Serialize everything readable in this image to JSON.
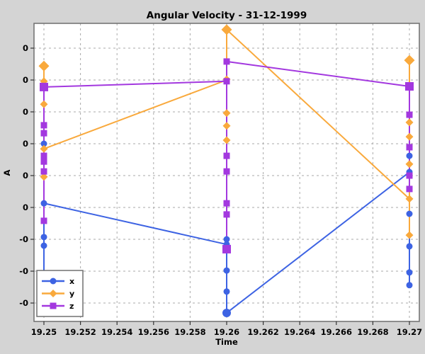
{
  "colors": {
    "figure_background": "#d4d4d4",
    "plot_background": "#ffffff",
    "grid": "#aaaaaa",
    "plot_border": "#6e6e6e",
    "legend_border": "#707070",
    "text": "#000000",
    "series_x": "#3d63e3",
    "series_y": "#f9a93c",
    "series_z": "#a338df"
  },
  "chart_data": {
    "type": "line",
    "title": "Angular Velocity - 31-12-1999",
    "xlabel": "Time",
    "ylabel": "A",
    "grid": true,
    "legend_position": "lower left",
    "x_range": [
      19.2495,
      19.2705
    ],
    "x_ticks": [
      {
        "v": 19.25,
        "label": "19.25"
      },
      {
        "v": 19.252,
        "label": "19.252"
      },
      {
        "v": 19.254,
        "label": "19.254"
      },
      {
        "v": 19.256,
        "label": "19.256"
      },
      {
        "v": 19.258,
        "label": "19.258"
      },
      {
        "v": 19.26,
        "label": "19.26"
      },
      {
        "v": 19.262,
        "label": "19.262"
      },
      {
        "v": 19.264,
        "label": "19.264"
      },
      {
        "v": 19.266,
        "label": "19.266"
      },
      {
        "v": 19.268,
        "label": "19.268"
      },
      {
        "v": 19.27,
        "label": "19.27"
      }
    ],
    "y_axis_note": "values are near zero; tick labels render as 0 / -0; y coordinates below are in gridline units relative to the last '0' tick",
    "y_ticks": [
      {
        "v": 5,
        "label": "0"
      },
      {
        "v": 4,
        "label": "0"
      },
      {
        "v": 3,
        "label": "0"
      },
      {
        "v": 2,
        "label": "0"
      },
      {
        "v": 1,
        "label": "0"
      },
      {
        "v": 0,
        "label": "0"
      },
      {
        "v": -1,
        "label": "-0"
      },
      {
        "v": -2,
        "label": "-0"
      },
      {
        "v": -3,
        "label": "-0"
      }
    ],
    "series": [
      {
        "name": "x",
        "marker": "circle",
        "color_key": "series_x",
        "clusters": [
          {
            "t": 19.25,
            "line": [
              2.0,
              -2.78
            ],
            "points": [
              2.0,
              1.44,
              0.13,
              -0.93,
              -1.2
            ],
            "big": []
          },
          {
            "t": 19.26,
            "line": [
              -1.0,
              -3.31
            ],
            "points": [
              -1.0,
              -1.16,
              -1.98,
              -2.64,
              -3.31
            ],
            "big": [
              -3.31
            ]
          },
          {
            "t": 19.27,
            "line": [
              1.62,
              -2.44
            ],
            "points": [
              1.62,
              1.11,
              -0.2,
              -1.22,
              -2.04,
              -2.44
            ],
            "big": []
          }
        ],
        "connectors": [
          {
            "t1": 19.25,
            "v1": 0.13,
            "t2": 19.26,
            "v2": -1.16
          },
          {
            "t1": 19.26,
            "v1": -3.31,
            "t2": 19.27,
            "v2": 1.11
          }
        ]
      },
      {
        "name": "y",
        "marker": "diamond",
        "color_key": "series_y",
        "clusters": [
          {
            "t": 19.25,
            "line": [
              4.44,
              0.96
            ],
            "points": [
              4.44,
              3.96,
              3.24,
              1.84,
              0.96
            ],
            "big": [
              4.44
            ]
          },
          {
            "t": 19.26,
            "line": [
              5.58,
              2.11
            ],
            "points": [
              5.58,
              4.02,
              2.96,
              2.56,
              2.11
            ],
            "big": [
              5.58
            ]
          },
          {
            "t": 19.27,
            "line": [
              4.62,
              -0.87
            ],
            "points": [
              4.62,
              2.67,
              2.22,
              1.36,
              0.27,
              -0.87
            ],
            "big": [
              4.62
            ]
          }
        ],
        "connectors": [
          {
            "t1": 19.25,
            "v1": 1.84,
            "t2": 19.26,
            "v2": 4.0
          },
          {
            "t1": 19.26,
            "v1": 5.58,
            "t2": 19.27,
            "v2": 0.27
          }
        ]
      },
      {
        "name": "z",
        "marker": "square",
        "color_key": "series_z",
        "clusters": [
          {
            "t": 19.25,
            "line": [
              3.78,
              -0.42
            ],
            "points": [
              3.78,
              2.58,
              2.33,
              1.62,
              1.44,
              1.13,
              -0.42
            ],
            "big": [
              3.78
            ]
          },
          {
            "t": 19.26,
            "line": [
              4.58,
              -1.31
            ],
            "points": [
              4.58,
              3.96,
              1.62,
              1.13,
              0.13,
              -0.22,
              -1.31
            ],
            "big": [
              -1.31
            ]
          },
          {
            "t": 19.27,
            "line": [
              3.8,
              0.58
            ],
            "points": [
              3.8,
              2.91,
              1.89,
              1.0,
              0.58
            ],
            "big": [
              3.8
            ]
          }
        ],
        "connectors": [
          {
            "t1": 19.25,
            "v1": 3.78,
            "t2": 19.26,
            "v2": 3.96
          },
          {
            "t1": 19.26,
            "v1": 4.58,
            "t2": 19.27,
            "v2": 3.8
          }
        ]
      }
    ],
    "legend": {
      "entries": [
        {
          "label": "x"
        },
        {
          "label": "y"
        },
        {
          "label": "z"
        }
      ]
    }
  }
}
